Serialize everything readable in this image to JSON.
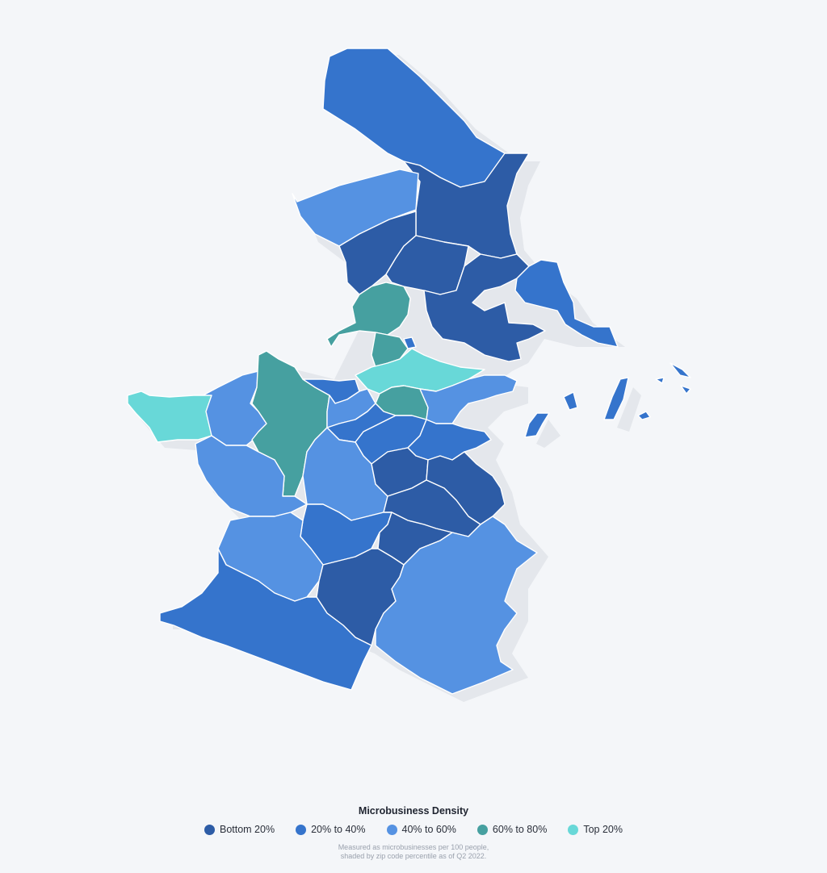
{
  "legend": {
    "title": "Microbusiness Density",
    "items": [
      {
        "label": "Bottom 20%",
        "color": "#2d5ca6"
      },
      {
        "label": "20% to 40%",
        "color": "#3574cc"
      },
      {
        "label": "40% to 60%",
        "color": "#5592e2"
      },
      {
        "label": "60% to 80%",
        "color": "#46a0a0"
      },
      {
        "label": "Top 20%",
        "color": "#68d8d8"
      }
    ],
    "note_line1": "Measured as microbusinesses per 100 people,",
    "note_line2": "shaded by zip code percentile as of Q2 2022."
  },
  "colors": {
    "background": "#f4f6f9",
    "shadow": "#e4e7ec",
    "border": "#ffffff"
  }
}
